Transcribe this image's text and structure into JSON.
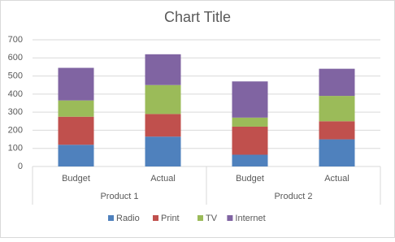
{
  "chart_data": {
    "type": "stacked_bar",
    "title": "Chart Title",
    "categories": [
      "Budget",
      "Actual",
      "Budget",
      "Actual"
    ],
    "groups": [
      "Product 1",
      "Product 2"
    ],
    "series": [
      {
        "name": "Radio",
        "color": "#4f81bd",
        "values": [
          120,
          165,
          65,
          150
        ]
      },
      {
        "name": "Print",
        "color": "#c0504d",
        "values": [
          155,
          125,
          155,
          100
        ]
      },
      {
        "name": "TV",
        "color": "#9bbb59",
        "values": [
          90,
          160,
          50,
          140
        ]
      },
      {
        "name": "Internet",
        "color": "#8064a2",
        "values": [
          180,
          170,
          200,
          150
        ]
      }
    ],
    "ylim": [
      0,
      700
    ],
    "yticks": [
      0,
      100,
      200,
      300,
      400,
      500,
      600,
      700
    ],
    "grid": true,
    "legend": "bottom"
  }
}
